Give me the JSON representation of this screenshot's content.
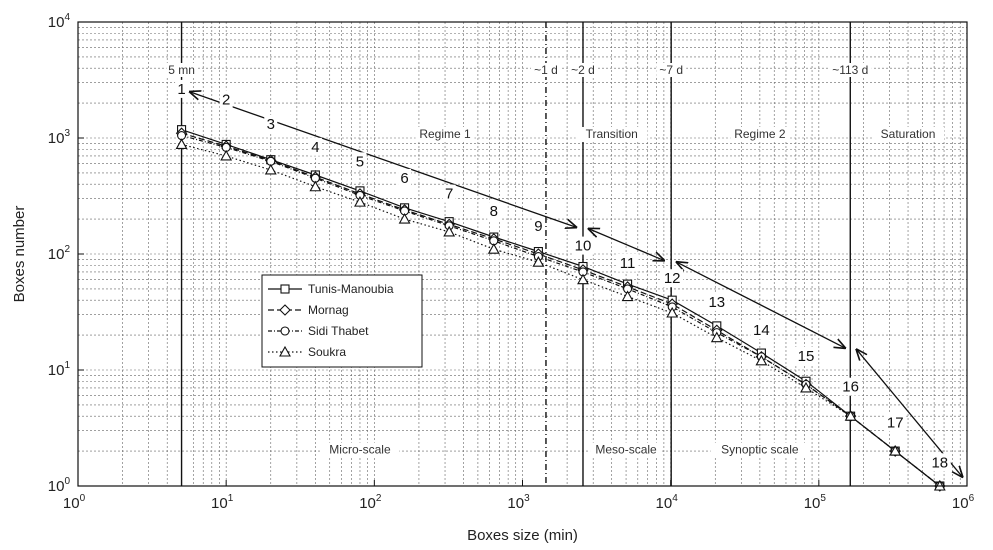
{
  "chart_data": {
    "type": "line",
    "xlabel": "Boxes size (min)",
    "ylabel": "Boxes number",
    "x_scale": "log",
    "y_scale": "log",
    "xlim": [
      1,
      1000000
    ],
    "ylim": [
      1,
      10000
    ],
    "grid": true,
    "legend_position": "center-left",
    "x_ticks": [
      {
        "base": "10",
        "exp": "0",
        "value": 1
      },
      {
        "base": "10",
        "exp": "1",
        "value": 10
      },
      {
        "base": "10",
        "exp": "2",
        "value": 100
      },
      {
        "base": "10",
        "exp": "3",
        "value": 1000
      },
      {
        "base": "10",
        "exp": "4",
        "value": 10000
      },
      {
        "base": "10",
        "exp": "5",
        "value": 100000
      },
      {
        "base": "10",
        "exp": "6",
        "value": 1000000
      }
    ],
    "y_ticks": [
      {
        "base": "10",
        "exp": "0",
        "value": 1
      },
      {
        "base": "10",
        "exp": "1",
        "value": 10
      },
      {
        "base": "10",
        "exp": "2",
        "value": 100
      },
      {
        "base": "10",
        "exp": "3",
        "value": 1000
      },
      {
        "base": "10",
        "exp": "4",
        "value": 10000
      }
    ],
    "x": [
      5,
      10,
      20,
      40,
      80,
      160,
      320,
      640,
      1280,
      2560,
      5120,
      10240,
      20480,
      40960,
      81920,
      163840,
      327680,
      655360
    ],
    "series": [
      {
        "name": "Tunis-Manoubia",
        "marker": "square",
        "dash": "",
        "values": [
          1180,
          880,
          650,
          480,
          350,
          250,
          190,
          140,
          105,
          78,
          55,
          40,
          24,
          14,
          8,
          4,
          2,
          1
        ]
      },
      {
        "name": "Mornag",
        "marker": "diamond",
        "dash": "6 3",
        "values": [
          1100,
          850,
          640,
          460,
          330,
          240,
          180,
          135,
          100,
          73,
          52,
          37,
          22,
          13,
          7.5,
          4,
          2,
          1
        ]
      },
      {
        "name": "Sidi Thabet",
        "marker": "circle",
        "dash": "4 2 1 2",
        "values": [
          1050,
          830,
          630,
          450,
          320,
          235,
          175,
          130,
          95,
          70,
          50,
          35,
          21,
          13,
          7.5,
          4,
          2,
          1
        ]
      },
      {
        "name": "Soukra",
        "marker": "triangle",
        "dash": "1.5 2.5",
        "values": [
          880,
          700,
          530,
          380,
          280,
          200,
          155,
          110,
          85,
          60,
          43,
          31,
          19,
          12,
          7,
          4,
          2,
          1
        ]
      }
    ],
    "vertical_lines": [
      {
        "x": 5,
        "label": "5 mn",
        "style": "solid"
      },
      {
        "x": 1440,
        "label": "~1 d",
        "style": "dashdot"
      },
      {
        "x": 2560,
        "label": "~2 d",
        "style": "solid"
      },
      {
        "x": 10080,
        "label": "~7 d",
        "style": "solid"
      },
      {
        "x": 163000,
        "label": "~113 d",
        "style": "solid"
      }
    ],
    "regimes": [
      {
        "text": "Regime 1",
        "x": 300,
        "y": 1000
      },
      {
        "text": "Transition",
        "x": 4000,
        "y": 1000
      },
      {
        "text": "Regime 2",
        "x": 40000,
        "y": 1000
      },
      {
        "text": "Saturation",
        "x": 400000,
        "y": 1000
      }
    ],
    "scales": [
      {
        "text": "Micro-scale",
        "x": 80,
        "y": 1.9
      },
      {
        "text": "Meso-scale",
        "x": 5000,
        "y": 1.9
      },
      {
        "text": "Synoptic scale",
        "x": 40000,
        "y": 1.9
      }
    ],
    "arrows": [
      {
        "x1": 5.7,
        "y1": 2500,
        "x2": 2300,
        "y2": 170
      },
      {
        "x1": 2800,
        "y1": 165,
        "x2": 9000,
        "y2": 88
      },
      {
        "x1": 11000,
        "y1": 85,
        "x2": 150000,
        "y2": 15.5
      },
      {
        "x1": 180000,
        "y1": 15,
        "x2": 930000,
        "y2": 1.2
      }
    ],
    "numbers": [
      {
        "text": "1",
        "x": 5,
        "y": 2400
      },
      {
        "text": "2",
        "x": 10,
        "y": 1950
      },
      {
        "text": "3",
        "x": 20,
        "y": 1200
      },
      {
        "text": "4",
        "x": 40,
        "y": 760
      },
      {
        "text": "5",
        "x": 80,
        "y": 570
      },
      {
        "text": "6",
        "x": 160,
        "y": 410
      },
      {
        "text": "7",
        "x": 320,
        "y": 300
      },
      {
        "text": "8",
        "x": 640,
        "y": 212
      },
      {
        "text": "9",
        "x": 1280,
        "y": 158
      },
      {
        "text": "10",
        "x": 2560,
        "y": 107
      },
      {
        "text": "11",
        "x": 5120,
        "y": 76
      },
      {
        "text": "12",
        "x": 10240,
        "y": 56
      },
      {
        "text": "13",
        "x": 20480,
        "y": 35
      },
      {
        "text": "14",
        "x": 40960,
        "y": 20
      },
      {
        "text": "15",
        "x": 81920,
        "y": 12
      },
      {
        "text": "16",
        "x": 163840,
        "y": 6.5
      },
      {
        "text": "17",
        "x": 327680,
        "y": 3.2
      },
      {
        "text": "18",
        "x": 655360,
        "y": 1.45
      }
    ]
  }
}
